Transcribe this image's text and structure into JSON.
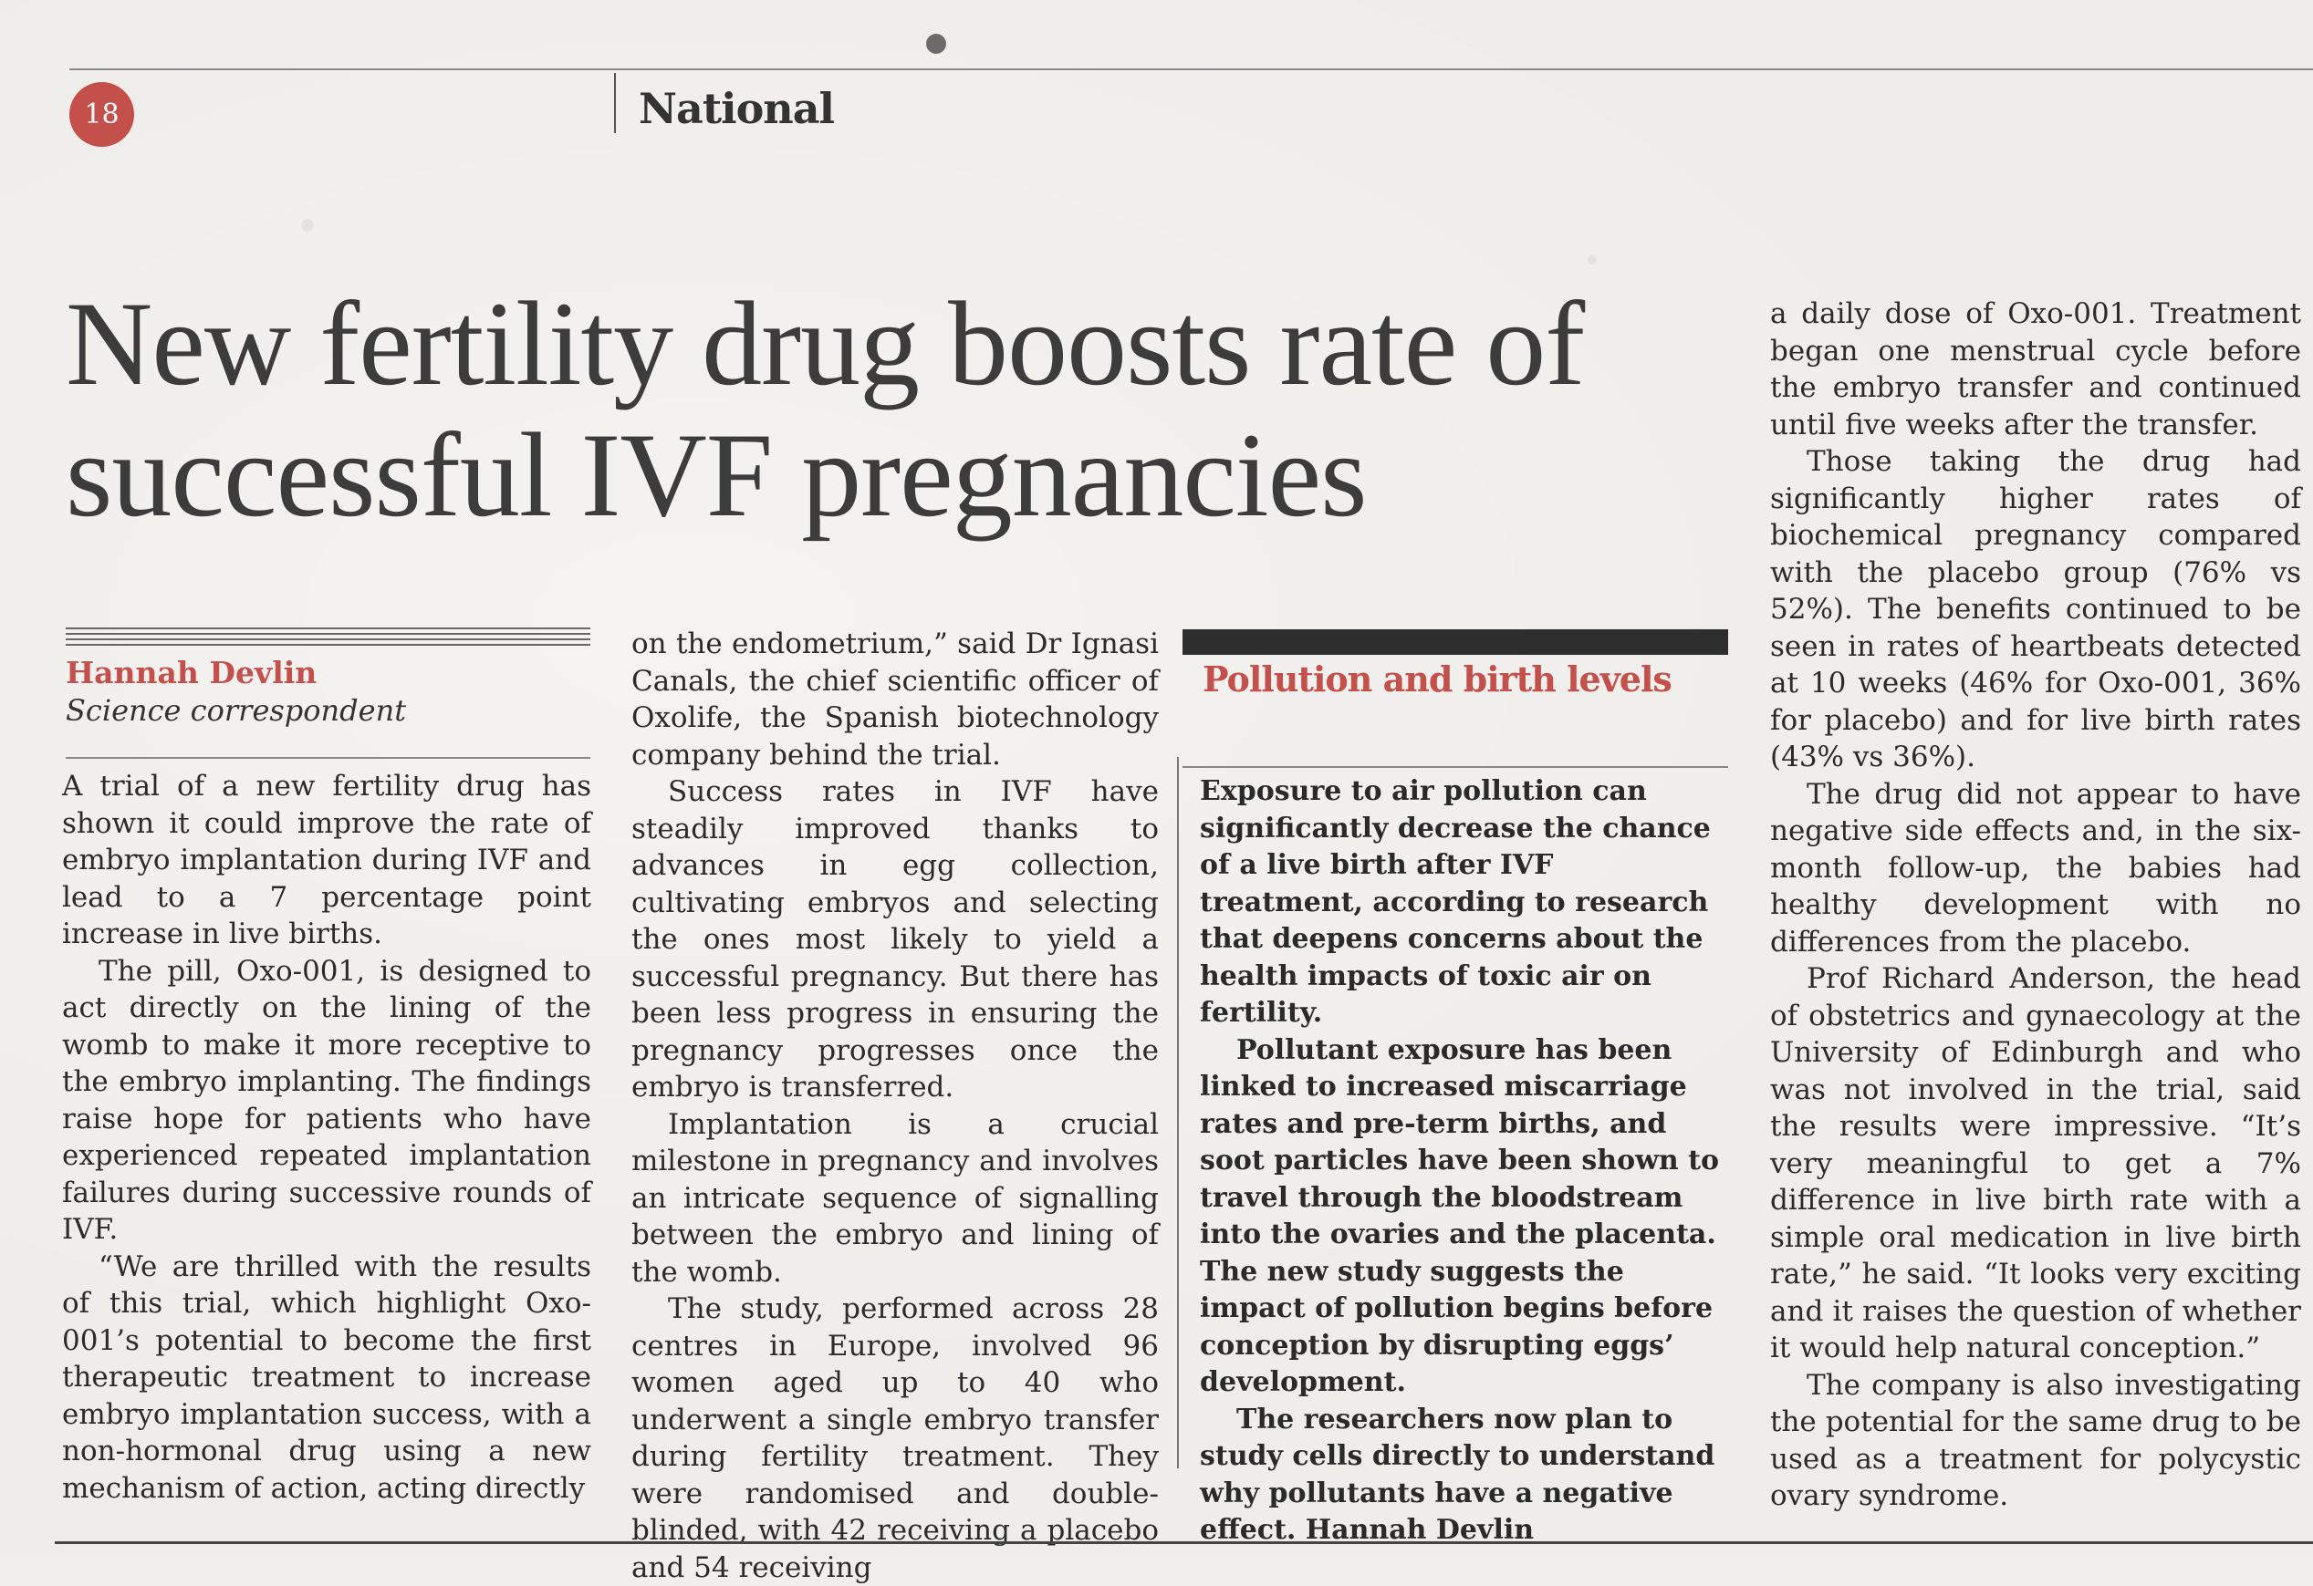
{
  "header": {
    "page_number": "18",
    "section": "National"
  },
  "article": {
    "headline": "New fertility drug boosts rate of successful IVF pregnancies",
    "byline_name": "Hannah Devlin",
    "byline_role": "Science correspondent",
    "col1": [
      "A trial of a new fertility drug has shown it could improve the rate of embryo implantation during IVF and lead to a 7 percentage point increase in live births.",
      "The pill, Oxo-001, is designed to act directly on the lining of the womb to make it more receptive to the embryo implanting. The findings raise hope for patients who have experienced repeated implantation failures during successive rounds of IVF.",
      "“We are thrilled with the results of this trial, which highlight Oxo-001’s potential to become the first therapeutic treatment to increase embryo implantation success, with a non-hormonal drug using a new mechanism of action, acting directly"
    ],
    "col2": [
      "on the endometrium,” said Dr Ignasi Canals, the chief scientific officer of Oxolife, the Spanish biotechnology company behind the trial.",
      "Success rates in IVF have steadily improved thanks to advances in egg collection, cultivating embryos and selecting the ones most likely to yield a successful pregnancy. But there has been less progress in ensuring the pregnancy progresses once the embryo is transferred.",
      "Implantation is a crucial milestone in pregnancy and involves an intricate sequence of signalling between the embryo and lining of the womb.",
      "The study, performed across 28 centres in Europe, involved 96 women aged up to 40 who underwent a single embryo transfer during fertility treatment. They were randomised and double-blinded, with 42 receiving a placebo and 54 receiving"
    ],
    "col4": [
      "a daily dose of Oxo-001. Treatment began one menstrual cycle before the embryo transfer and continued until five weeks after the transfer.",
      "Those taking the drug had significantly higher rates of biochemical pregnancy compared with the placebo group (76% vs 52%). The benefits continued to be seen in rates of heartbeats detected at 10 weeks (46% for Oxo-001, 36% for placebo) and for live birth rates (43% vs 36%).",
      "The drug did not appear to have negative side effects and, in the six-month follow-up, the babies had healthy development with no differences from the placebo.",
      "Prof Richard Anderson, the head of obstetrics and gynaecology at the University of Edinburgh and who was not involved in the trial, said the results were impressive. “It’s very meaningful to get a 7% difference in live birth rate with a simple oral medication in live birth rate,” he said. “It looks very exciting and it raises the question of whether it would help natural conception.”",
      "The company is also investigating the potential for the same drug to be used as a treatment for polycystic ovary syndrome."
    ]
  },
  "sidebar": {
    "title": "Pollution and birth levels",
    "paragraphs": [
      "Exposure to air pollution can significantly decrease the chance of a live birth after IVF treatment, according to research that deepens concerns about the health impacts of toxic air on fertility.",
      "Pollutant exposure has been linked to increased miscarriage rates and pre-term births, and soot particles have been shown to travel through the bloodstream into the ovaries and the placenta. The new study suggests the impact of pollution begins before conception by disrupting eggs’ development.",
      "The researchers now plan to study cells directly to understand why pollutants have a negative effect. Hannah Devlin"
    ]
  },
  "colors": {
    "accent": "#c4504c",
    "text": "#2b2b2b",
    "paper": "#efedea"
  }
}
